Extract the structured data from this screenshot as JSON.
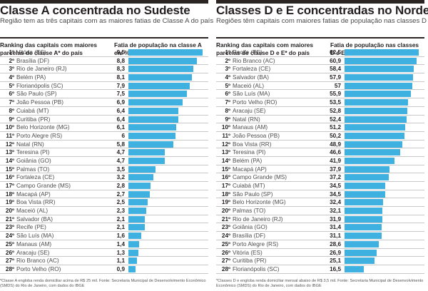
{
  "chart_data": [
    {
      "type": "bar",
      "orientation": "horizontal",
      "title": "Classe A concentrada no Sudeste",
      "subtitle": "Região tem as três capitais com as maiores fatias de Classe A do país",
      "column_headers": {
        "left": "Ranking das capitais com maiores parcelas de classe A* do país",
        "right": "Fatia de população na classe A em %"
      },
      "bar_color": "#3fb1e0",
      "xlim": [
        0,
        9.5
      ],
      "rows": [
        {
          "rank": "1º",
          "city": "Vitória (ES)",
          "value": "9,5",
          "v": 9.5
        },
        {
          "rank": "2º",
          "city": "Brasília (DF)",
          "value": "8,8",
          "v": 8.8
        },
        {
          "rank": "3º",
          "city": "Rio de Janeiro (RJ)",
          "value": "8,3",
          "v": 8.3
        },
        {
          "rank": "4º",
          "city": "Belém (PA)",
          "value": "8,1",
          "v": 8.1
        },
        {
          "rank": "5º",
          "city": "Florianópolis (SC)",
          "value": "7,9",
          "v": 7.9
        },
        {
          "rank": "6º",
          "city": "São Paulo (SP)",
          "value": "7,5",
          "v": 7.5
        },
        {
          "rank": "7º",
          "city": "João Pessoa (PB)",
          "value": "6,9",
          "v": 6.9
        },
        {
          "rank": "8º",
          "city": "Cuiabá (MT)",
          "value": "6,4",
          "v": 6.4
        },
        {
          "rank": "9º",
          "city": "Curitiba (PR)",
          "value": "6,4",
          "v": 6.4
        },
        {
          "rank": "10º",
          "city": "Belo Horizonte (MG)",
          "value": "6,1",
          "v": 6.1
        },
        {
          "rank": "11º",
          "city": "Porto Alegre (RS)",
          "value": "6",
          "v": 6.0
        },
        {
          "rank": "12º",
          "city": "Natal (RN)",
          "value": "5,8",
          "v": 5.8
        },
        {
          "rank": "13º",
          "city": "Teresina (PI)",
          "value": "4,7",
          "v": 4.7
        },
        {
          "rank": "14º",
          "city": "Goiânia (GO)",
          "value": "4,7",
          "v": 4.7
        },
        {
          "rank": "15º",
          "city": "Palmas (TO)",
          "value": "3,5",
          "v": 3.5
        },
        {
          "rank": "16º",
          "city": "Fortaleza (CE)",
          "value": "3,2",
          "v": 3.2
        },
        {
          "rank": "17º",
          "city": "Campo Grande (MS)",
          "value": "2,8",
          "v": 2.8
        },
        {
          "rank": "18º",
          "city": "Macapá (AP)",
          "value": "2,7",
          "v": 2.7
        },
        {
          "rank": "19º",
          "city": "Boa Vista (RR)",
          "value": "2,5",
          "v": 2.5
        },
        {
          "rank": "20º",
          "city": "Maceió (AL)",
          "value": "2,3",
          "v": 2.3
        },
        {
          "rank": "21º",
          "city": "Salvador (BA)",
          "value": "2,1",
          "v": 2.1
        },
        {
          "rank": "23º",
          "city": "Recife (PE)",
          "value": "2,1",
          "v": 2.1
        },
        {
          "rank": "24º",
          "city": "São Luís (MA)",
          "value": "1,6",
          "v": 1.6
        },
        {
          "rank": "25º",
          "city": "Manaus (AM)",
          "value": "1,4",
          "v": 1.4
        },
        {
          "rank": "26º",
          "city": "Aracaju (SE)",
          "value": "1,3",
          "v": 1.3
        },
        {
          "rank": "27º",
          "city": "Rio Branco (AC)",
          "value": "1,1",
          "v": 1.1
        },
        {
          "rank": "28º",
          "city": "Porto Velho (RO)",
          "value": "0,9",
          "v": 0.9
        }
      ],
      "footnote": "*Classe A engloba renda domiciliar acima de R$ 25 mil. Fonte: Secretaria Municipal de Desenvolvimento Econômico (SMDS) do Rio de Janeiro, com dados do IBGE"
    },
    {
      "type": "bar",
      "orientation": "horizontal",
      "title": "Classes D e E concentradas no Nordeste",
      "subtitle": "Regiões têm capitais com maiores fatias de população nas classes D e E",
      "column_headers": {
        "left": "Ranking das capitais com maiores parcelas de classe D e E* do país",
        "right": "Fatia de população nas classes D e E em %"
      },
      "bar_color": "#3fb1e0",
      "xlim": [
        0,
        62.5
      ],
      "rows": [
        {
          "rank": "1º",
          "city": "Recife (PE)",
          "value": "62,5",
          "v": 62.5
        },
        {
          "rank": "2º",
          "city": "Rio Branco (AC)",
          "value": "60,9",
          "v": 60.9
        },
        {
          "rank": "3º",
          "city": "Fortaleza (CE)",
          "value": "58,4",
          "v": 58.4
        },
        {
          "rank": "4º",
          "city": "Salvador (BA)",
          "value": "57,9",
          "v": 57.9
        },
        {
          "rank": "5º",
          "city": "Maceió (AL)",
          "value": "57",
          "v": 57.0
        },
        {
          "rank": "6º",
          "city": "São Luís (MA)",
          "value": "55,9",
          "v": 55.9
        },
        {
          "rank": "7º",
          "city": "Porto Velho (RO)",
          "value": "53,5",
          "v": 53.5
        },
        {
          "rank": "8º",
          "city": "Aracaju (SE)",
          "value": "52,8",
          "v": 52.8
        },
        {
          "rank": "9º",
          "city": "Natal (RN)",
          "value": "52,4",
          "v": 52.4
        },
        {
          "rank": "10º",
          "city": "Manaus (AM)",
          "value": "51,2",
          "v": 51.2
        },
        {
          "rank": "11º",
          "city": "João Pessoa (PB)",
          "value": "50,2",
          "v": 50.2
        },
        {
          "rank": "12º",
          "city": "Boa Vista (RR)",
          "value": "48,9",
          "v": 48.9
        },
        {
          "rank": "13º",
          "city": "Teresina (PI)",
          "value": "46,6",
          "v": 46.6
        },
        {
          "rank": "14º",
          "city": "Belém (PA)",
          "value": "41,9",
          "v": 41.9
        },
        {
          "rank": "15º",
          "city": "Macapá (AP)",
          "value": "37,9",
          "v": 37.9
        },
        {
          "rank": "16º",
          "city": "Campo Grande (MS)",
          "value": "37,2",
          "v": 37.2
        },
        {
          "rank": "17º",
          "city": "Cuiabá (MT)",
          "value": "34,5",
          "v": 34.5
        },
        {
          "rank": "18º",
          "city": "São Paulo (SP)",
          "value": "34,5",
          "v": 34.5
        },
        {
          "rank": "19º",
          "city": "Belo Horizonte (MG)",
          "value": "32,4",
          "v": 32.4
        },
        {
          "rank": "20º",
          "city": "Palmas (TO)",
          "value": "32,1",
          "v": 32.1
        },
        {
          "rank": "21º",
          "city": "Rio de Janeiro (RJ)",
          "value": "31,9",
          "v": 31.9
        },
        {
          "rank": "23º",
          "city": "Goiânia (GO)",
          "value": "31,4",
          "v": 31.4
        },
        {
          "rank": "24º",
          "city": "Brasília (DF)",
          "value": "31,1",
          "v": 31.1
        },
        {
          "rank": "25º",
          "city": "Porto Alegre (RS)",
          "value": "28,6",
          "v": 28.6
        },
        {
          "rank": "26º",
          "city": "Vitória (ES)",
          "value": "26,9",
          "v": 26.9
        },
        {
          "rank": "27º",
          "city": "Curitiba (PR)",
          "value": "25,1",
          "v": 25.1
        },
        {
          "rank": "28º",
          "city": "Florianópolis (SC)",
          "value": "16,5",
          "v": 16.5
        }
      ],
      "footnote": "*Classes D e engloba renda domiciliar mensal abaixo de R$ 3,5 mil. Fonte: Secretaria Municipal de Desenvolvimento Econômico (SMDS) do Rio de Janeiro, com dados do IBGE"
    }
  ]
}
